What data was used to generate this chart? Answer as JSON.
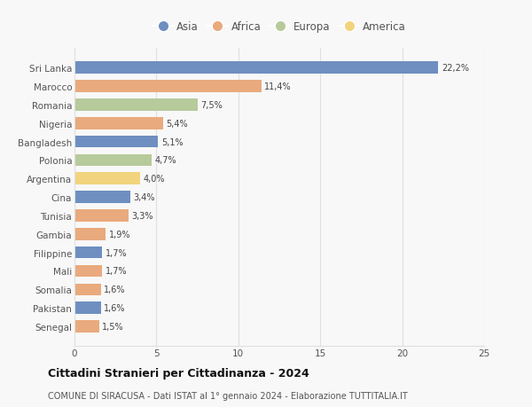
{
  "categories": [
    "Sri Lanka",
    "Marocco",
    "Romania",
    "Nigeria",
    "Bangladesh",
    "Polonia",
    "Argentina",
    "Cina",
    "Tunisia",
    "Gambia",
    "Filippine",
    "Mali",
    "Somalia",
    "Pakistan",
    "Senegal"
  ],
  "values": [
    22.2,
    11.4,
    7.5,
    5.4,
    5.1,
    4.7,
    4.0,
    3.4,
    3.3,
    1.9,
    1.7,
    1.7,
    1.6,
    1.6,
    1.5
  ],
  "labels": [
    "22,2%",
    "11,4%",
    "7,5%",
    "5,4%",
    "5,1%",
    "4,7%",
    "4,0%",
    "3,4%",
    "3,3%",
    "1,9%",
    "1,7%",
    "1,7%",
    "1,6%",
    "1,6%",
    "1,5%"
  ],
  "continents": [
    "Asia",
    "Africa",
    "Europa",
    "Africa",
    "Asia",
    "Europa",
    "America",
    "Asia",
    "Africa",
    "Africa",
    "Asia",
    "Africa",
    "Africa",
    "Asia",
    "Africa"
  ],
  "colors": {
    "Asia": "#6e8fc0",
    "Africa": "#e9aa7d",
    "Europa": "#b7ca9b",
    "America": "#f2d47e"
  },
  "legend_order": [
    "Asia",
    "Africa",
    "Europa",
    "America"
  ],
  "title": "Cittadini Stranieri per Cittadinanza - 2024",
  "subtitle": "COMUNE DI SIRACUSA - Dati ISTAT al 1° gennaio 2024 - Elaborazione TUTTITALIA.IT",
  "xlim": [
    0,
    25
  ],
  "xticks": [
    0,
    5,
    10,
    15,
    20,
    25
  ],
  "background_color": "#f8f8f8",
  "grid_color": "#e0e0e0"
}
